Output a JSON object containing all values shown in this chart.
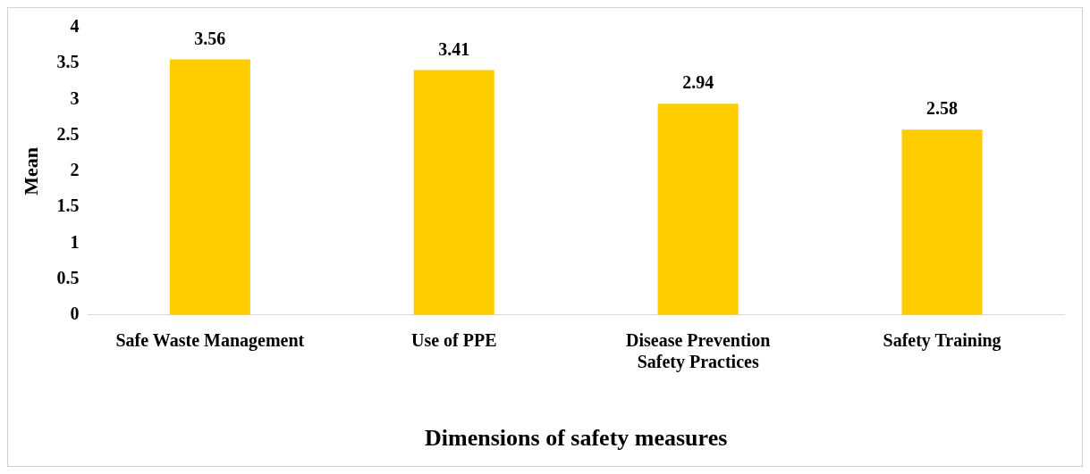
{
  "chart_data": {
    "type": "bar",
    "xlabel": "Dimensions of safety measures",
    "ylabel": "Mean",
    "categories": [
      "Safe Waste Management",
      "Use of PPE",
      "Disease Prevention Safety Practices",
      "Safety Training"
    ],
    "values": [
      3.56,
      3.41,
      2.94,
      2.58
    ],
    "color": "#ffcc00",
    "ylim": [
      0,
      4
    ],
    "yticks": [
      0,
      0.5,
      1,
      1.5,
      2,
      2.5,
      3,
      3.5,
      4
    ],
    "grid": false,
    "legend": false,
    "data_labels": true
  }
}
